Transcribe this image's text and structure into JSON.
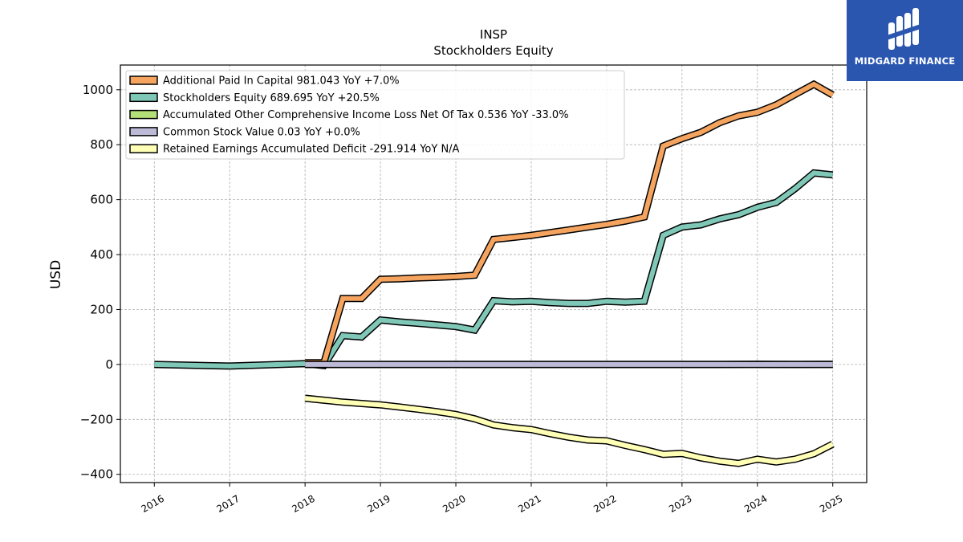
{
  "chart_data": {
    "type": "line",
    "title": "INSP",
    "subtitle": "Stockholders  Equity",
    "xlabel": "",
    "ylabel": "USD",
    "xlim": [
      2015.55,
      2025.45
    ],
    "ylim": [
      -430,
      1090
    ],
    "x_ticks": [
      2016,
      2017,
      2018,
      2019,
      2020,
      2021,
      2022,
      2023,
      2024,
      2025
    ],
    "x_tick_labels": [
      "2016",
      "2017",
      "2018",
      "2019",
      "2020",
      "2021",
      "2022",
      "2023",
      "2024",
      "2025"
    ],
    "y_ticks": [
      -400,
      -200,
      0,
      200,
      400,
      600,
      800,
      1000
    ],
    "y_tick_labels": [
      "−400",
      "−200",
      "0",
      "200",
      "400",
      "600",
      "800",
      "1000"
    ],
    "grid": true,
    "legend_position": "top-left",
    "series": [
      {
        "name": "Additional Paid In Capital  981.043 YoY +7.0%",
        "color": "#f5a45f",
        "points": [
          [
            2018.0,
            6
          ],
          [
            2018.25,
            6
          ],
          [
            2018.5,
            240
          ],
          [
            2018.75,
            240
          ],
          [
            2019.0,
            310
          ],
          [
            2019.25,
            312
          ],
          [
            2019.5,
            315
          ],
          [
            2019.75,
            317
          ],
          [
            2020.0,
            320
          ],
          [
            2020.25,
            325
          ],
          [
            2020.5,
            455
          ],
          [
            2020.75,
            462
          ],
          [
            2021.0,
            470
          ],
          [
            2021.25,
            480
          ],
          [
            2021.5,
            490
          ],
          [
            2021.75,
            500
          ],
          [
            2022.0,
            510
          ],
          [
            2022.25,
            522
          ],
          [
            2022.5,
            537
          ],
          [
            2022.75,
            795
          ],
          [
            2023.0,
            822
          ],
          [
            2023.25,
            845
          ],
          [
            2023.5,
            880
          ],
          [
            2023.75,
            905
          ],
          [
            2024.0,
            918
          ],
          [
            2024.25,
            945
          ],
          [
            2024.5,
            983
          ],
          [
            2024.75,
            1020
          ],
          [
            2025.0,
            981
          ]
        ]
      },
      {
        "name": "Stockholders Equity  689.695 YoY +20.5%",
        "color": "#7fc8b8",
        "points": [
          [
            2016.0,
            0
          ],
          [
            2017.0,
            -6
          ],
          [
            2018.0,
            3
          ],
          [
            2018.25,
            -4
          ],
          [
            2018.5,
            105
          ],
          [
            2018.75,
            100
          ],
          [
            2019.0,
            162
          ],
          [
            2019.25,
            155
          ],
          [
            2019.5,
            150
          ],
          [
            2019.75,
            144
          ],
          [
            2020.0,
            138
          ],
          [
            2020.25,
            125
          ],
          [
            2020.5,
            232
          ],
          [
            2020.75,
            228
          ],
          [
            2021.0,
            230
          ],
          [
            2021.25,
            225
          ],
          [
            2021.5,
            222
          ],
          [
            2021.75,
            222
          ],
          [
            2022.0,
            230
          ],
          [
            2022.25,
            227
          ],
          [
            2022.5,
            230
          ],
          [
            2022.75,
            470
          ],
          [
            2023.0,
            500
          ],
          [
            2023.25,
            508
          ],
          [
            2023.5,
            530
          ],
          [
            2023.75,
            545
          ],
          [
            2024.0,
            572
          ],
          [
            2024.25,
            590
          ],
          [
            2024.5,
            640
          ],
          [
            2024.75,
            697
          ],
          [
            2025.0,
            690
          ]
        ]
      },
      {
        "name": "Accumulated Other Comprehensive Income Loss Net Of Tax  0.536 YoY -33.0%",
        "color": "#b4de78",
        "points": [
          [
            2018.0,
            0
          ],
          [
            2018.5,
            0
          ],
          [
            2019.0,
            0
          ],
          [
            2019.5,
            0
          ],
          [
            2020.0,
            0
          ],
          [
            2020.5,
            0
          ],
          [
            2021.0,
            0
          ],
          [
            2021.5,
            0
          ],
          [
            2022.0,
            0
          ],
          [
            2022.5,
            0
          ],
          [
            2023.0,
            0
          ],
          [
            2023.5,
            0
          ],
          [
            2024.0,
            1
          ],
          [
            2024.5,
            0
          ],
          [
            2025.0,
            0.5
          ]
        ]
      },
      {
        "name": "Common Stock Value  0.03 YoY +0.0%",
        "color": "#bdbad8",
        "points": [
          [
            2018.0,
            0
          ],
          [
            2018.5,
            0
          ],
          [
            2019.0,
            0
          ],
          [
            2019.5,
            0
          ],
          [
            2020.0,
            0
          ],
          [
            2020.5,
            0
          ],
          [
            2021.0,
            0
          ],
          [
            2021.5,
            0
          ],
          [
            2022.0,
            0
          ],
          [
            2022.5,
            0
          ],
          [
            2023.0,
            0
          ],
          [
            2023.5,
            0
          ],
          [
            2024.0,
            0
          ],
          [
            2024.5,
            0
          ],
          [
            2025.0,
            0
          ]
        ]
      },
      {
        "name": "Retained Earnings Accumulated Deficit  -291.914 YoY N/A",
        "color": "#ffffb6",
        "points": [
          [
            2018.0,
            -123
          ],
          [
            2018.25,
            -130
          ],
          [
            2018.5,
            -137
          ],
          [
            2018.75,
            -142
          ],
          [
            2019.0,
            -147
          ],
          [
            2019.25,
            -155
          ],
          [
            2019.5,
            -163
          ],
          [
            2019.75,
            -172
          ],
          [
            2020.0,
            -182
          ],
          [
            2020.25,
            -198
          ],
          [
            2020.5,
            -220
          ],
          [
            2020.75,
            -230
          ],
          [
            2021.0,
            -237
          ],
          [
            2021.25,
            -252
          ],
          [
            2021.5,
            -265
          ],
          [
            2021.75,
            -275
          ],
          [
            2022.0,
            -278
          ],
          [
            2022.25,
            -295
          ],
          [
            2022.5,
            -310
          ],
          [
            2022.75,
            -327
          ],
          [
            2023.0,
            -324
          ],
          [
            2023.25,
            -340
          ],
          [
            2023.5,
            -352
          ],
          [
            2023.75,
            -360
          ],
          [
            2024.0,
            -345
          ],
          [
            2024.25,
            -355
          ],
          [
            2024.5,
            -345
          ],
          [
            2024.75,
            -325
          ],
          [
            2025.0,
            -290
          ]
        ]
      }
    ]
  },
  "branding": {
    "logo_text": "MIDGARD FINANCE",
    "logo_color": "#2a56b0"
  }
}
